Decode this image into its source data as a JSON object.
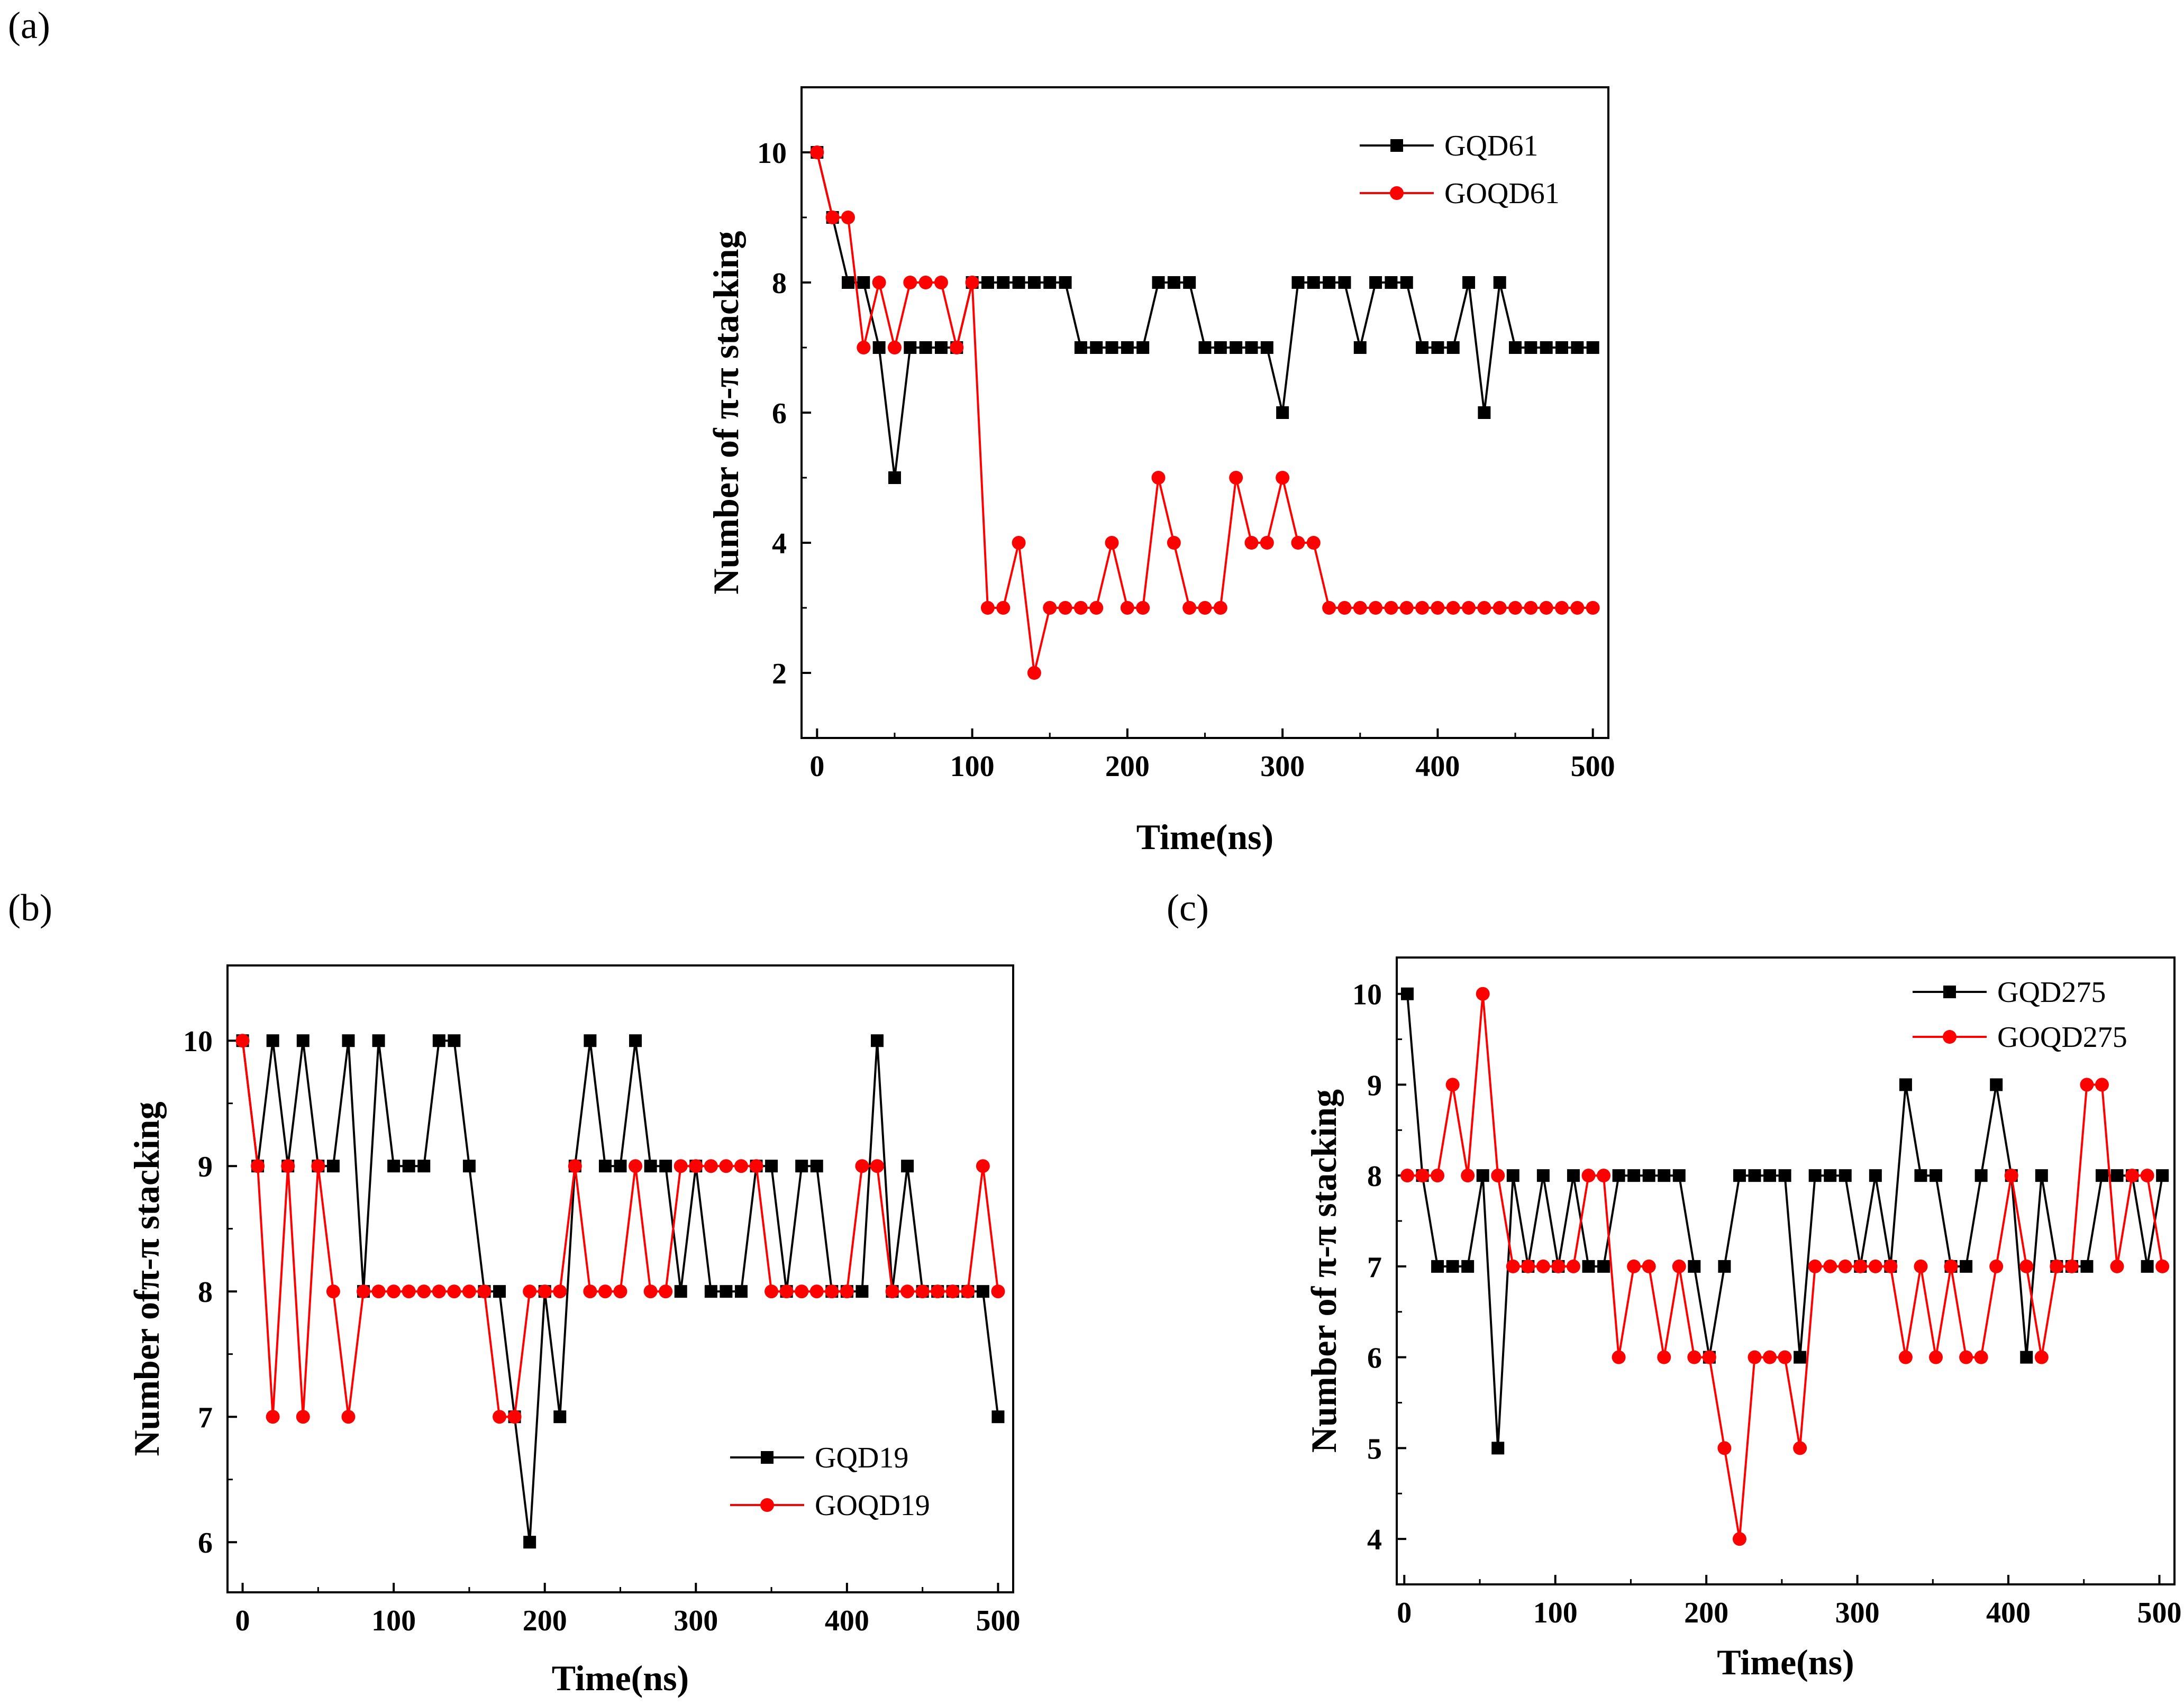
{
  "colors": {
    "gqd": "#000000",
    "goqd": "#ff0000"
  },
  "chart_data": [
    {
      "panel": "(a)",
      "type": "line",
      "xlabel": "Time(ns)",
      "ylabel": "Number of π-π stacking",
      "xlim": [
        -10,
        510
      ],
      "ylim": [
        1,
        11
      ],
      "xticks": [
        0,
        100,
        200,
        300,
        400,
        500
      ],
      "yticks": [
        2,
        4,
        6,
        8,
        10
      ],
      "legend_position": "top-right",
      "x": [
        0,
        10,
        20,
        30,
        40,
        50,
        60,
        70,
        80,
        90,
        100,
        110,
        120,
        130,
        140,
        150,
        160,
        170,
        180,
        190,
        200,
        210,
        220,
        230,
        240,
        250,
        260,
        270,
        280,
        290,
        300,
        310,
        320,
        330,
        340,
        350,
        360,
        370,
        380,
        390,
        400,
        410,
        420,
        430,
        440,
        450,
        460,
        470,
        480,
        490,
        500
      ],
      "series": [
        {
          "name": "GQD61",
          "marker": "square",
          "color": "#000000",
          "values": [
            10,
            9,
            8,
            8,
            7,
            5,
            7,
            7,
            7,
            7,
            8,
            8,
            8,
            8,
            8,
            8,
            8,
            7,
            7,
            7,
            7,
            7,
            8,
            8,
            8,
            7,
            7,
            7,
            7,
            7,
            6,
            8,
            8,
            8,
            8,
            7,
            8,
            8,
            8,
            7,
            7,
            7,
            8,
            6,
            8,
            7,
            7,
            7,
            7,
            7,
            7
          ]
        },
        {
          "name": "GOQD61",
          "marker": "circle",
          "color": "#ff0000",
          "values": [
            10,
            9,
            9,
            7,
            8,
            7,
            8,
            8,
            8,
            7,
            8,
            3,
            3,
            4,
            2,
            3,
            3,
            3,
            3,
            4,
            3,
            3,
            5,
            4,
            3,
            3,
            3,
            5,
            4,
            4,
            5,
            4,
            4,
            3,
            3,
            3,
            3,
            3,
            3,
            3,
            3,
            3,
            3,
            3,
            3,
            3,
            3,
            3,
            3,
            3,
            3
          ]
        }
      ]
    },
    {
      "panel": "(b)",
      "type": "line",
      "xlabel": "Time(ns)",
      "ylabel": "Number ofπ-π stacking",
      "xlim": [
        -10,
        510
      ],
      "ylim": [
        5.6,
        10.6
      ],
      "xticks": [
        0,
        100,
        200,
        300,
        400,
        500
      ],
      "yticks": [
        6,
        7,
        8,
        9,
        10
      ],
      "legend_position": "bottom-right",
      "x": [
        0,
        10,
        20,
        30,
        40,
        50,
        60,
        70,
        80,
        90,
        100,
        110,
        120,
        130,
        140,
        150,
        160,
        170,
        180,
        190,
        200,
        210,
        220,
        230,
        240,
        250,
        260,
        270,
        280,
        290,
        300,
        310,
        320,
        330,
        340,
        350,
        360,
        370,
        380,
        390,
        400,
        410,
        420,
        430,
        440,
        450,
        460,
        470,
        480,
        490,
        500
      ],
      "series": [
        {
          "name": "GQD19",
          "marker": "square",
          "color": "#000000",
          "values": [
            10,
            9,
            10,
            9,
            10,
            9,
            9,
            10,
            8,
            10,
            9,
            9,
            9,
            10,
            10,
            9,
            8,
            8,
            7,
            6,
            8,
            7,
            9,
            10,
            9,
            9,
            10,
            9,
            9,
            8,
            9,
            8,
            8,
            8,
            9,
            9,
            8,
            9,
            9,
            8,
            8,
            8,
            10,
            8,
            9,
            8,
            8,
            8,
            8,
            8,
            7
          ]
        },
        {
          "name": "GOQD19",
          "marker": "circle",
          "color": "#ff0000",
          "values": [
            10,
            9,
            7,
            9,
            7,
            9,
            8,
            7,
            8,
            8,
            8,
            8,
            8,
            8,
            8,
            8,
            8,
            7,
            7,
            8,
            8,
            8,
            9,
            8,
            8,
            8,
            9,
            8,
            8,
            9,
            9,
            9,
            9,
            9,
            9,
            8,
            8,
            8,
            8,
            8,
            8,
            9,
            9,
            8,
            8,
            8,
            8,
            8,
            8,
            9,
            8
          ]
        }
      ]
    },
    {
      "panel": "(c)",
      "type": "line",
      "xlabel": "Time(ns)",
      "ylabel": "Number of π-π stacking",
      "xlim": [
        -5,
        510
      ],
      "ylim": [
        3.5,
        10.4
      ],
      "xticks": [
        0,
        100,
        200,
        300,
        400,
        500
      ],
      "yticks": [
        4,
        5,
        6,
        7,
        8,
        9,
        10
      ],
      "legend_position": "top-right",
      "x": [
        2,
        12,
        22,
        32,
        42,
        52,
        62,
        72,
        82,
        92,
        102,
        112,
        122,
        132,
        142,
        152,
        162,
        172,
        182,
        192,
        202,
        212,
        222,
        232,
        242,
        252,
        262,
        272,
        282,
        292,
        302,
        312,
        322,
        332,
        342,
        352,
        362,
        372,
        382,
        392,
        402,
        412,
        422,
        432,
        442,
        452,
        462,
        472,
        482,
        492,
        502
      ],
      "series": [
        {
          "name": "GQD275",
          "marker": "square",
          "color": "#000000",
          "values": [
            10,
            8,
            7,
            7,
            7,
            8,
            5,
            8,
            7,
            8,
            7,
            8,
            7,
            7,
            8,
            8,
            8,
            8,
            8,
            7,
            6,
            7,
            8,
            8,
            8,
            8,
            6,
            8,
            8,
            8,
            7,
            8,
            7,
            9,
            8,
            8,
            7,
            7,
            8,
            9,
            8,
            6,
            8,
            7,
            7,
            7,
            8,
            8,
            8,
            7,
            8
          ]
        },
        {
          "name": "GOQD275",
          "marker": "circle",
          "color": "#ff0000",
          "values": [
            8,
            8,
            8,
            9,
            8,
            10,
            8,
            7,
            7,
            7,
            7,
            7,
            8,
            8,
            6,
            7,
            7,
            6,
            7,
            6,
            6,
            5,
            4,
            6,
            6,
            6,
            5,
            7,
            7,
            7,
            7,
            7,
            7,
            6,
            7,
            6,
            7,
            6,
            6,
            7,
            8,
            7,
            6,
            7,
            7,
            9,
            9,
            7,
            8,
            8,
            7
          ]
        }
      ]
    }
  ]
}
